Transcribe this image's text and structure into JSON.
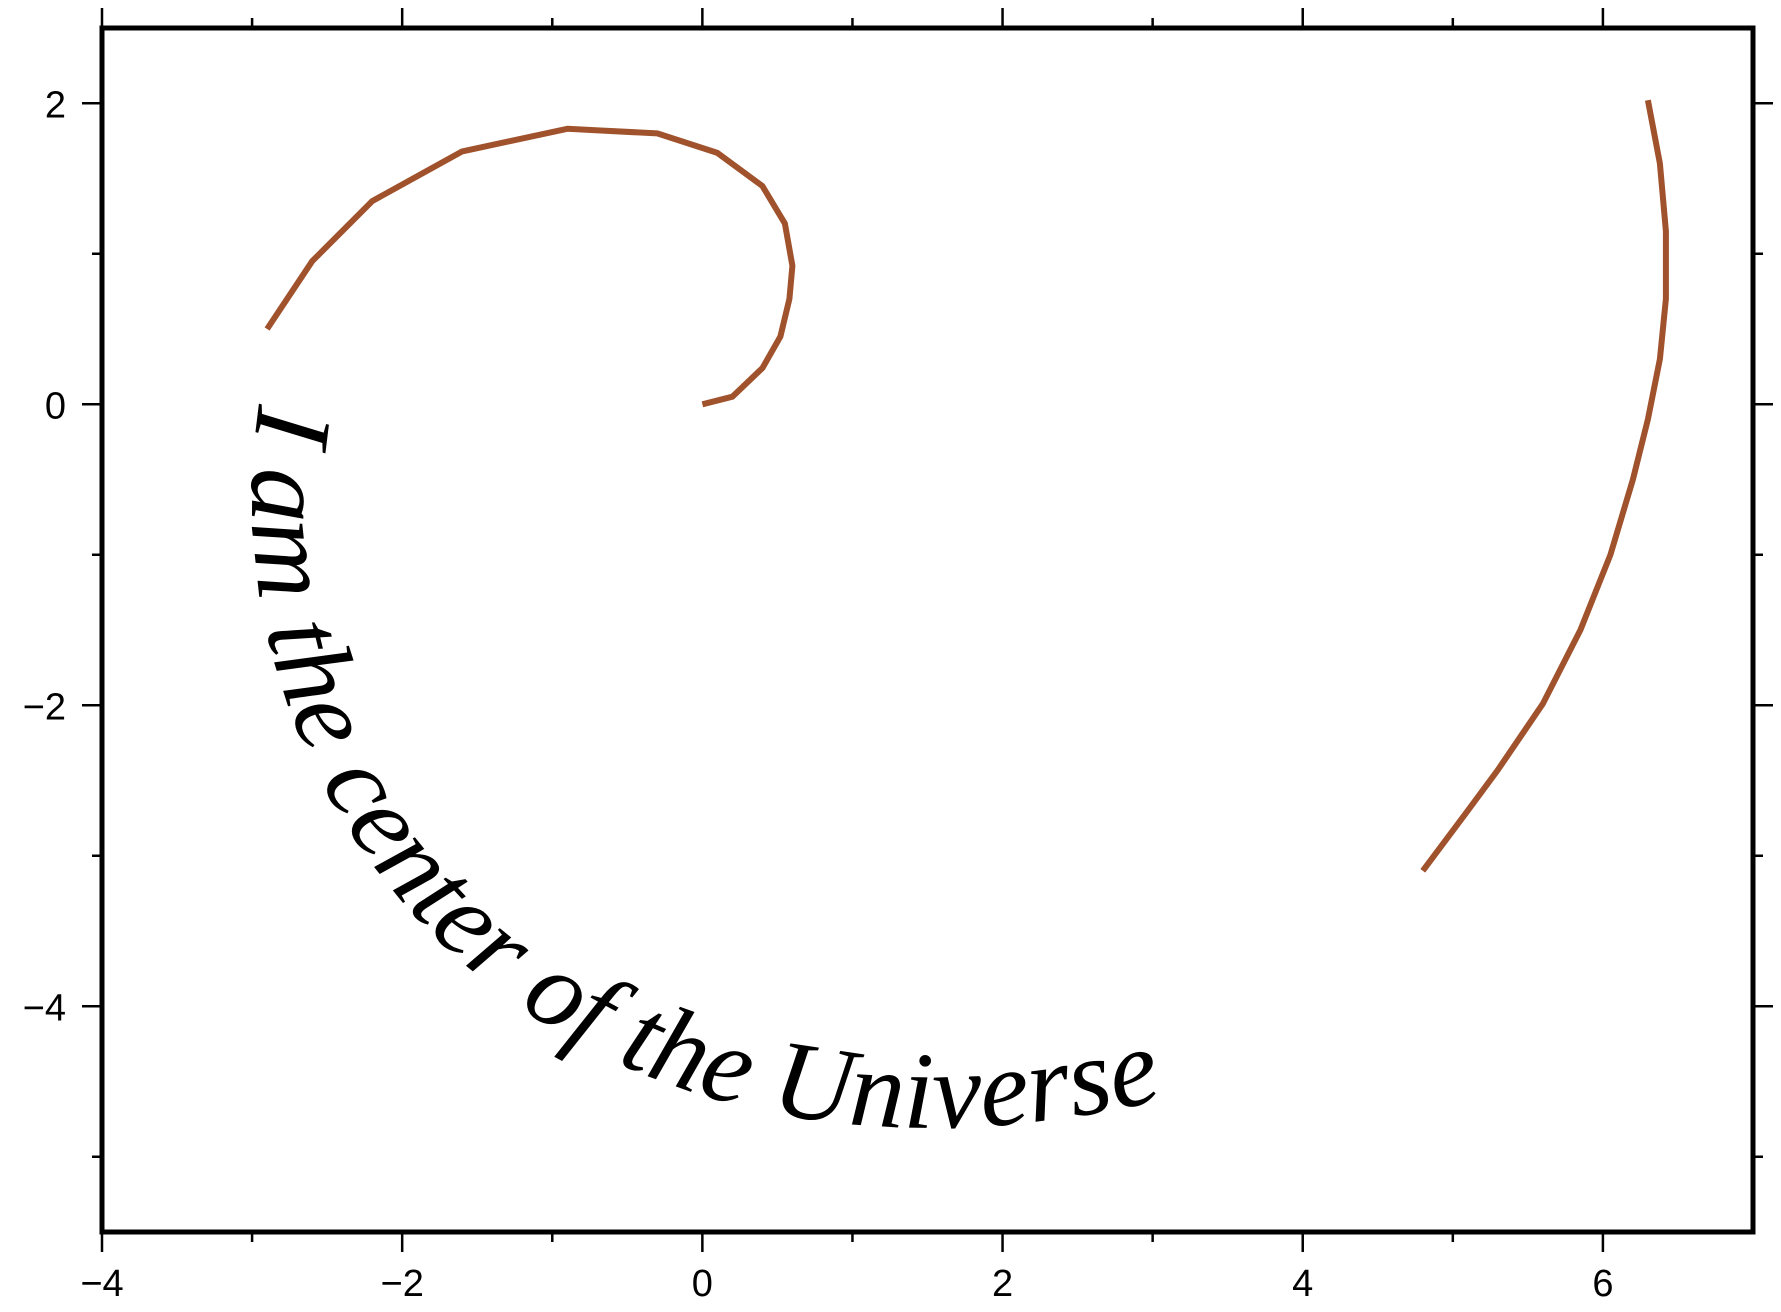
{
  "chart_data": {
    "type": "line",
    "title": "",
    "xlabel": "",
    "ylabel": "",
    "xlim": [
      -4,
      7
    ],
    "ylim": [
      -5.5,
      2.5
    ],
    "grid": false,
    "x_ticks": [
      {
        "value": -4,
        "label": "−4"
      },
      {
        "value": -2,
        "label": "−2"
      },
      {
        "value": 0,
        "label": "0"
      },
      {
        "value": 2,
        "label": "2"
      },
      {
        "value": 4,
        "label": "4"
      },
      {
        "value": 6,
        "label": "6"
      }
    ],
    "y_ticks": [
      {
        "value": 2,
        "label": "2"
      },
      {
        "value": 0,
        "label": "0"
      },
      {
        "value": -2,
        "label": "−2"
      },
      {
        "value": -4,
        "label": "−4"
      }
    ],
    "x_minor_ticks": [
      -3,
      -1,
      1,
      3,
      5
    ],
    "y_minor_ticks": [
      1,
      -1,
      -3,
      -5
    ],
    "series": [
      {
        "color": "#a0522d",
        "x": [
          0.0,
          0.2,
          0.4,
          0.52,
          0.58,
          0.6,
          0.55,
          0.4,
          0.1,
          -0.3,
          -0.9,
          -1.6,
          -2.2,
          -2.6,
          -2.9
        ],
        "y": [
          0.0,
          0.05,
          0.24,
          0.45,
          0.7,
          0.92,
          1.2,
          1.45,
          1.67,
          1.8,
          1.83,
          1.68,
          1.35,
          0.95,
          0.5
        ]
      },
      {
        "color": "#a0522d",
        "x": [
          6.3,
          6.38,
          6.42,
          6.42,
          6.38,
          6.3,
          6.2,
          6.05,
          5.85,
          5.6,
          5.3,
          5.1,
          4.8
        ],
        "y": [
          2.02,
          1.6,
          1.15,
          0.7,
          0.3,
          -0.1,
          -0.5,
          -1.0,
          -1.5,
          -1.99,
          -2.43,
          -2.7,
          -3.1
        ]
      }
    ],
    "annotations": [
      {
        "text": "I am the center of the Universe",
        "color": "#000000"
      }
    ]
  }
}
